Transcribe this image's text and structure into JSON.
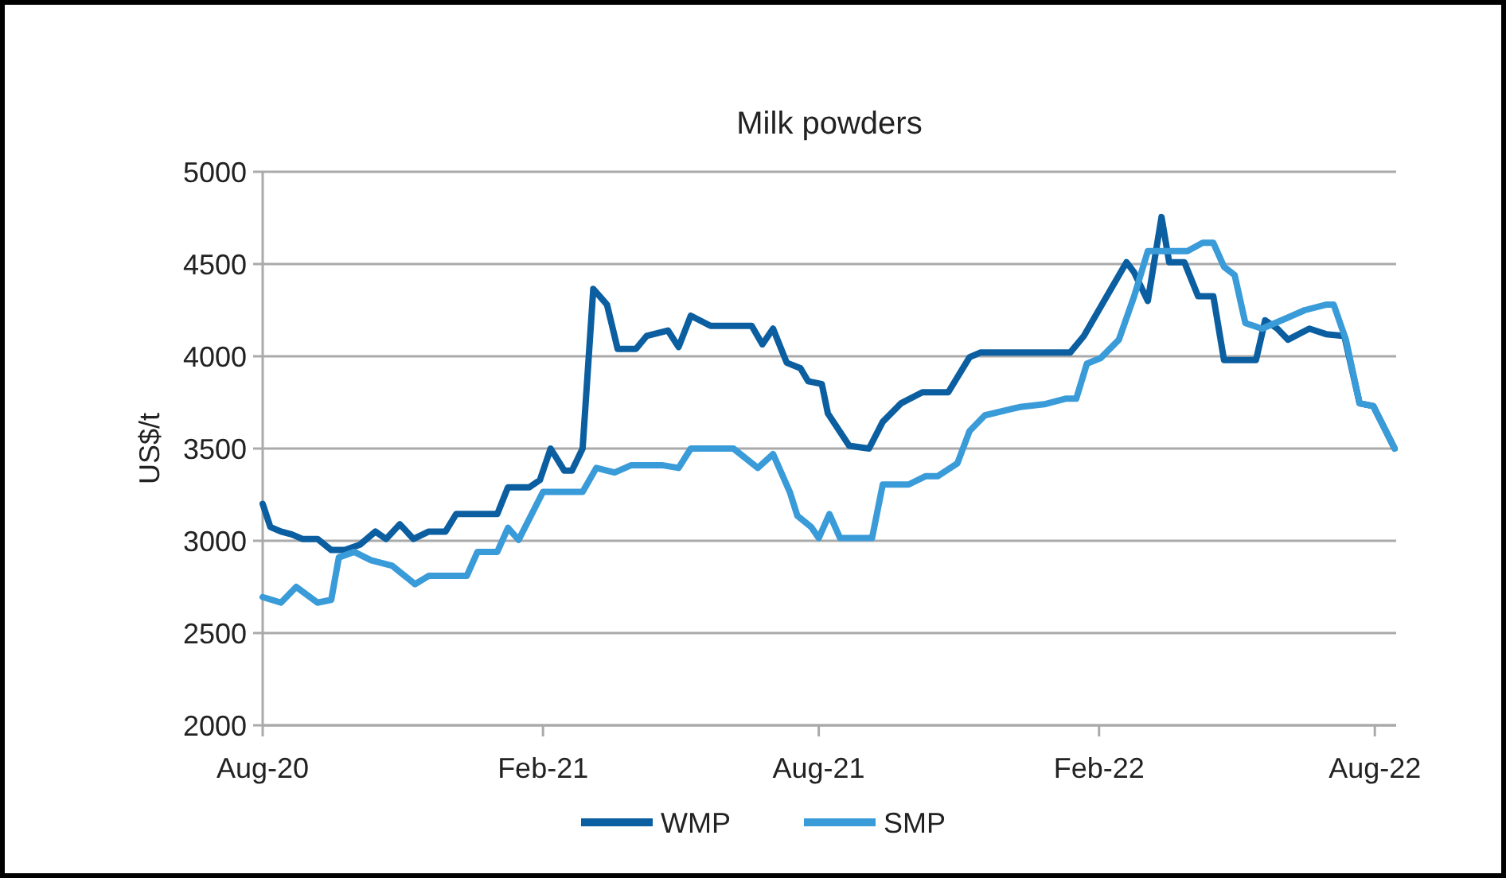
{
  "chart_data": {
    "type": "line",
    "title": "Milk powders",
    "ylabel": "US$/t",
    "xlim": [
      "2020-08-01",
      "2022-08-15"
    ],
    "xticks": [
      {
        "value": "2020-08-01",
        "label": "Aug-20"
      },
      {
        "value": "2021-02-01",
        "label": "Feb-21"
      },
      {
        "value": "2021-08-01",
        "label": "Aug-21"
      },
      {
        "value": "2022-02-01",
        "label": "Feb-22"
      },
      {
        "value": "2022-08-01",
        "label": "Aug-22"
      }
    ],
    "ylim": [
      2000,
      5000
    ],
    "yticks": [
      2000,
      2500,
      3000,
      3500,
      4000,
      4500,
      5000
    ],
    "grid": "y",
    "legend": "bottom",
    "line_style": "solid",
    "series": [
      {
        "name": "WMP",
        "color": "#0b5fa0",
        "x": [
          "2020-08-01",
          "2020-08-06",
          "2020-08-13",
          "2020-08-20",
          "2020-08-27",
          "2020-09-06",
          "2020-09-15",
          "2020-09-24",
          "2020-10-04",
          "2020-10-14",
          "2020-10-21",
          "2020-10-30",
          "2020-11-08",
          "2020-11-18",
          "2020-11-29",
          "2020-12-06",
          "2020-12-16",
          "2021-01-02",
          "2021-01-09",
          "2021-01-23",
          "2021-01-30",
          "2021-02-06",
          "2021-02-15",
          "2021-02-20",
          "2021-02-27",
          "2021-03-06",
          "2021-03-15",
          "2021-03-22",
          "2021-04-03",
          "2021-04-10",
          "2021-04-24",
          "2021-05-01",
          "2021-05-09",
          "2021-05-22",
          "2021-06-18",
          "2021-06-25",
          "2021-07-02",
          "2021-07-11",
          "2021-07-20",
          "2021-07-25",
          "2021-08-03",
          "2021-08-07",
          "2021-08-21",
          "2021-09-03",
          "2021-09-12",
          "2021-09-24",
          "2021-10-08",
          "2021-10-25",
          "2021-11-08",
          "2021-11-15",
          "2022-01-13",
          "2022-01-22",
          "2022-02-05",
          "2022-02-19",
          "2022-02-24",
          "2022-03-05",
          "2022-03-14",
          "2022-03-19",
          "2022-03-29",
          "2022-04-07",
          "2022-04-17",
          "2022-04-24",
          "2022-05-15",
          "2022-05-21",
          "2022-05-29",
          "2022-06-05",
          "2022-06-19",
          "2022-06-30",
          "2022-07-12",
          "2022-07-22",
          "2022-07-31",
          "2022-08-14"
        ],
        "values": [
          3200,
          3075,
          3050,
          3035,
          3010,
          3010,
          2950,
          2950,
          2980,
          3050,
          3010,
          3090,
          3010,
          3050,
          3050,
          3145,
          3145,
          3145,
          3290,
          3290,
          3330,
          3500,
          3380,
          3380,
          3500,
          4365,
          4280,
          4040,
          4040,
          4110,
          4140,
          4050,
          4220,
          4165,
          4165,
          4065,
          4150,
          3965,
          3935,
          3865,
          3850,
          3690,
          3515,
          3500,
          3645,
          3745,
          3805,
          3805,
          3995,
          4020,
          4020,
          4110,
          4310,
          4510,
          4455,
          4300,
          4755,
          4510,
          4510,
          4325,
          4325,
          3980,
          3980,
          4195,
          4150,
          4090,
          4150,
          4120,
          4110,
          3745,
          3730,
          3500
        ]
      },
      {
        "name": "SMP",
        "color": "#3a9bd9",
        "x": [
          "2020-08-01",
          "2020-08-13",
          "2020-08-23",
          "2020-09-06",
          "2020-09-15",
          "2020-09-20",
          "2020-09-30",
          "2020-10-11",
          "2020-10-25",
          "2020-11-09",
          "2020-11-18",
          "2020-12-13",
          "2020-12-20",
          "2021-01-02",
          "2021-01-09",
          "2021-01-16",
          "2021-02-01",
          "2021-02-27",
          "2021-03-08",
          "2021-03-20",
          "2021-03-31",
          "2021-04-20",
          "2021-05-01",
          "2021-05-09",
          "2021-06-06",
          "2021-06-22",
          "2021-07-02",
          "2021-07-13",
          "2021-07-18",
          "2021-07-27",
          "2021-08-01",
          "2021-08-08",
          "2021-08-15",
          "2021-09-05",
          "2021-09-12",
          "2021-09-29",
          "2021-10-10",
          "2021-10-18",
          "2021-10-31",
          "2021-11-08",
          "2021-11-18",
          "2021-12-03",
          "2021-12-11",
          "2021-12-27",
          "2022-01-10",
          "2022-01-17",
          "2022-01-24",
          "2022-02-02",
          "2022-02-14",
          "2022-02-24",
          "2022-03-05",
          "2022-03-31",
          "2022-04-10",
          "2022-04-17",
          "2022-04-24",
          "2022-05-01",
          "2022-05-08",
          "2022-05-19",
          "2022-06-05",
          "2022-06-16",
          "2022-06-30",
          "2022-07-05",
          "2022-07-13",
          "2022-07-22",
          "2022-07-31",
          "2022-08-14"
        ],
        "values": [
          2695,
          2665,
          2750,
          2665,
          2680,
          2910,
          2940,
          2895,
          2865,
          2765,
          2810,
          2810,
          2940,
          2940,
          3070,
          3005,
          3265,
          3265,
          3395,
          3370,
          3410,
          3410,
          3395,
          3500,
          3500,
          3395,
          3470,
          3265,
          3135,
          3075,
          3015,
          3145,
          3015,
          3015,
          3305,
          3305,
          3350,
          3350,
          3420,
          3595,
          3680,
          3710,
          3725,
          3740,
          3770,
          3770,
          3960,
          3990,
          4090,
          4325,
          4570,
          4570,
          4615,
          4615,
          4485,
          4440,
          4180,
          4150,
          4210,
          4250,
          4280,
          4280,
          4090,
          3745,
          3730,
          3500
        ]
      }
    ]
  }
}
